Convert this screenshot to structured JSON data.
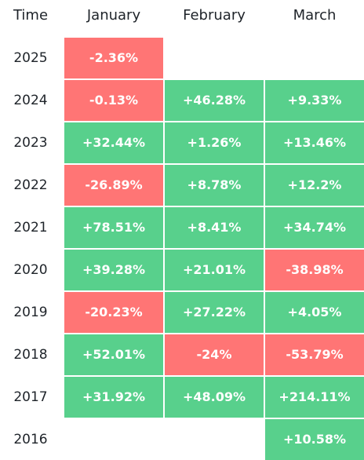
{
  "header": {
    "time": "Time",
    "months": [
      "January",
      "February",
      "March"
    ]
  },
  "rows": [
    {
      "year": "2025",
      "cells": [
        "-2.36%",
        "",
        ""
      ]
    },
    {
      "year": "2024",
      "cells": [
        "-0.13%",
        "+46.28%",
        "+9.33%"
      ]
    },
    {
      "year": "2023",
      "cells": [
        "+32.44%",
        "+1.26%",
        "+13.46%"
      ]
    },
    {
      "year": "2022",
      "cells": [
        "-26.89%",
        "+8.78%",
        "+12.2%"
      ]
    },
    {
      "year": "2021",
      "cells": [
        "+78.51%",
        "+8.41%",
        "+34.74%"
      ]
    },
    {
      "year": "2020",
      "cells": [
        "+39.28%",
        "+21.01%",
        "-38.98%"
      ]
    },
    {
      "year": "2019",
      "cells": [
        "-20.23%",
        "+27.22%",
        "+4.05%"
      ]
    },
    {
      "year": "2018",
      "cells": [
        "+52.01%",
        "-24%",
        "-53.79%"
      ]
    },
    {
      "year": "2017",
      "cells": [
        "+31.92%",
        "+48.09%",
        "+214.11%"
      ]
    },
    {
      "year": "2016",
      "cells": [
        "",
        "",
        "+10.58%"
      ]
    }
  ],
  "colors": {
    "positive": "#58d08c",
    "negative": "#ff7575",
    "text": "#1e2329"
  }
}
